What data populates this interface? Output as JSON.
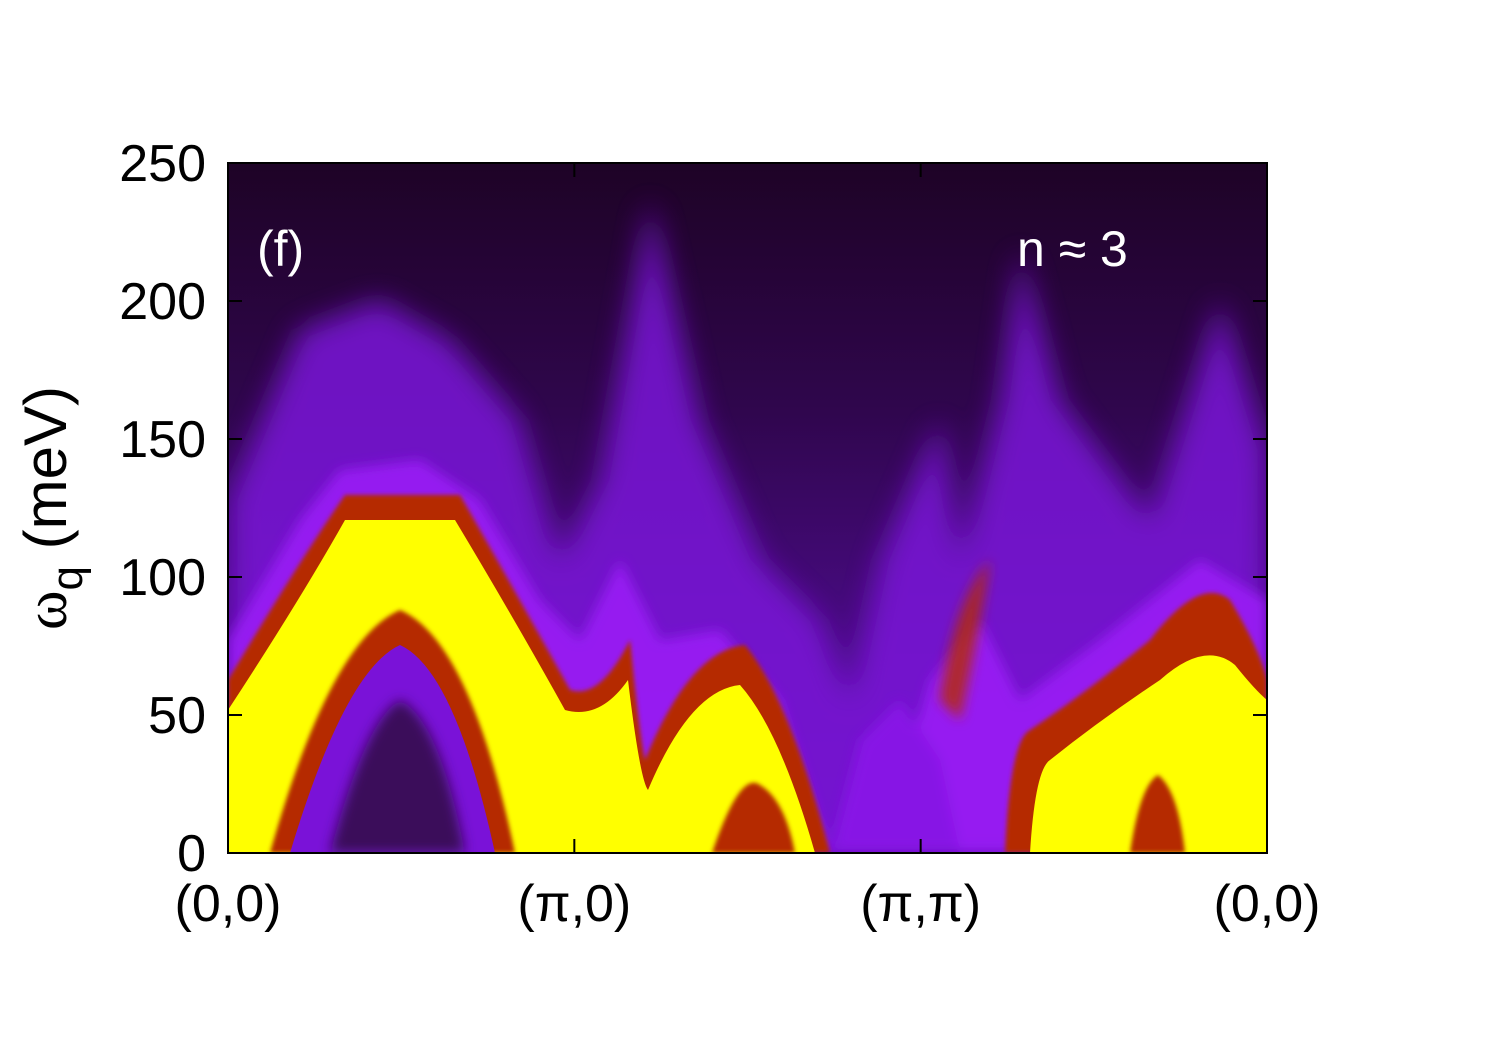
{
  "chart_data": {
    "type": "heatmap",
    "panel_label": "(f)",
    "annotation": "n ≈ 3",
    "ylabel_symbol": "ω",
    "ylabel_subscript": "q",
    "ylabel_unit": "(meV)",
    "ylim": [
      0,
      250
    ],
    "yticks": [
      0,
      50,
      100,
      150,
      200,
      250
    ],
    "ytick_labels": [
      "0",
      "50",
      "100",
      "150",
      "200",
      "250"
    ],
    "x_ticks": [
      {
        "label": "(0,0)",
        "pos": 0
      },
      {
        "label": "(π,0)",
        "pos": 1
      },
      {
        "label": "(π,π)",
        "pos": 2
      },
      {
        "label": "(0,0)",
        "pos": 3
      }
    ],
    "colormap": [
      "#000000",
      "#3a0a5a",
      "#8a10e8",
      "#b52b00",
      "#ffff00"
    ],
    "ridges": [
      {
        "name": "",
        "points": [
          [
            0.0,
            62
          ],
          [
            0.3,
            120
          ],
          [
            0.55,
            118
          ],
          [
            1.0,
            60
          ],
          [
            1.22,
            100
          ]
        ],
        "intensity": "high"
      },
      {
        "name": "",
        "points": [
          [
            0.15,
            0
          ],
          [
            0.28,
            40
          ],
          [
            0.42,
            70
          ],
          [
            0.55,
            40
          ],
          [
            0.7,
            0
          ]
        ],
        "intensity": "high"
      },
      {
        "name": "",
        "points": [
          [
            1.22,
            40
          ],
          [
            1.4,
            70
          ],
          [
            1.62,
            0
          ]
        ],
        "intensity": "high"
      },
      {
        "name": "",
        "points": [
          [
            1.95,
            50
          ],
          [
            2.1,
            60
          ],
          [
            2.3,
            70
          ],
          [
            2.55,
            95
          ],
          [
            3.0,
            55
          ]
        ],
        "intensity": "high"
      },
      {
        "name": "",
        "points": [
          [
            1.55,
            5
          ],
          [
            1.6,
            20
          ],
          [
            1.65,
            5
          ]
        ],
        "intensity": "medium"
      },
      {
        "name": "",
        "points": [
          [
            2.7,
            5
          ],
          [
            2.75,
            25
          ],
          [
            2.8,
            5
          ]
        ],
        "intensity": "medium"
      }
    ]
  }
}
